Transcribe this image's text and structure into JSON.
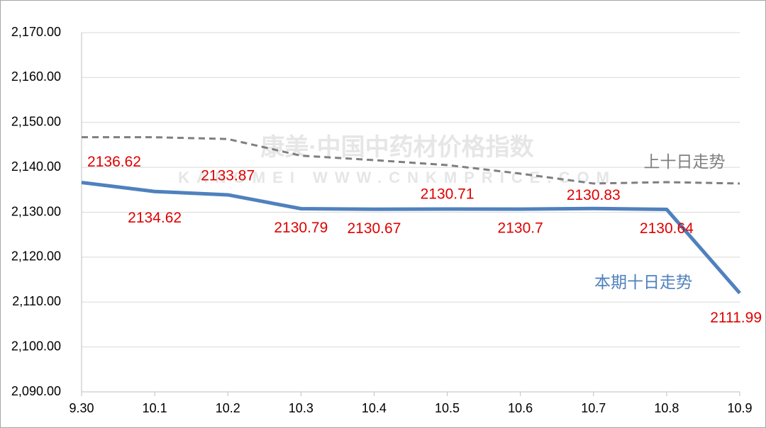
{
  "chart_data": {
    "type": "line",
    "watermark": [
      "康美·中国中药材价格指数",
      "KANGMEI WWW.CNKMPRICE.COM"
    ],
    "categories": [
      "9.30",
      "10.1",
      "10.2",
      "10.3",
      "10.4",
      "10.5",
      "10.6",
      "10.7",
      "10.8",
      "10.9"
    ],
    "series": [
      {
        "name": "本期十日走势",
        "color": "#4f81bd",
        "dashed": false,
        "show_values": true,
        "values": [
          2136.62,
          2134.62,
          2133.87,
          2130.79,
          2130.67,
          2130.71,
          2130.7,
          2130.83,
          2130.64,
          2111.99
        ]
      },
      {
        "name": "上十日走势",
        "color": "#7f7f7f",
        "dashed": true,
        "show_values": false,
        "values": [
          2146.7,
          2146.7,
          2146.3,
          2142.6,
          2141.6,
          2140.5,
          2138.6,
          2136.4,
          2136.7,
          2136.4
        ]
      }
    ],
    "ylim": [
      2090,
      2170
    ],
    "yticks": [
      {
        "value": 2090,
        "label": "2,090.00"
      },
      {
        "value": 2100,
        "label": "2,100.00"
      },
      {
        "value": 2110,
        "label": "2,110.00"
      },
      {
        "value": 2120,
        "label": "2,120.00"
      },
      {
        "value": 2130,
        "label": "2,130.00"
      },
      {
        "value": 2140,
        "label": "2,140.00"
      },
      {
        "value": 2150,
        "label": "2,150.00"
      },
      {
        "value": 2160,
        "label": "2,160.00"
      },
      {
        "value": 2170,
        "label": "2,170.00"
      }
    ],
    "grid": true
  }
}
